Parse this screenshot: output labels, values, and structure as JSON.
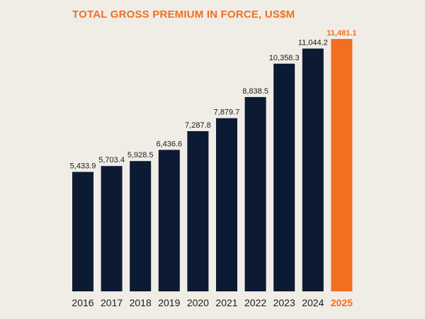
{
  "chart_data": {
    "type": "bar",
    "title": "TOTAL GROSS PREMIUM IN FORCE, US$M",
    "categories": [
      "2016",
      "2017",
      "2018",
      "2019",
      "2020",
      "2021",
      "2022",
      "2023",
      "2024",
      "2025"
    ],
    "values": [
      5433.9,
      5703.4,
      5928.5,
      6436.6,
      7287.8,
      7879.7,
      8838.5,
      10358.3,
      11044.2,
      11481.1
    ],
    "value_labels": [
      "5,433.9",
      "5,703.4",
      "5,928.5",
      "6,436.6",
      "7,287.8",
      "7,879.7",
      "8,838.5",
      "10,358.3",
      "11,044.2",
      "11,481.1"
    ],
    "highlight_category": "2025",
    "xlabel": "",
    "ylabel": "",
    "ylim": [
      0,
      11481.1
    ],
    "grid": false,
    "legend": "none"
  },
  "colors": {
    "background": "#f0ede6",
    "bar": "#0d1a33",
    "highlight": "#f26e21",
    "text": "#1b1b1b"
  }
}
